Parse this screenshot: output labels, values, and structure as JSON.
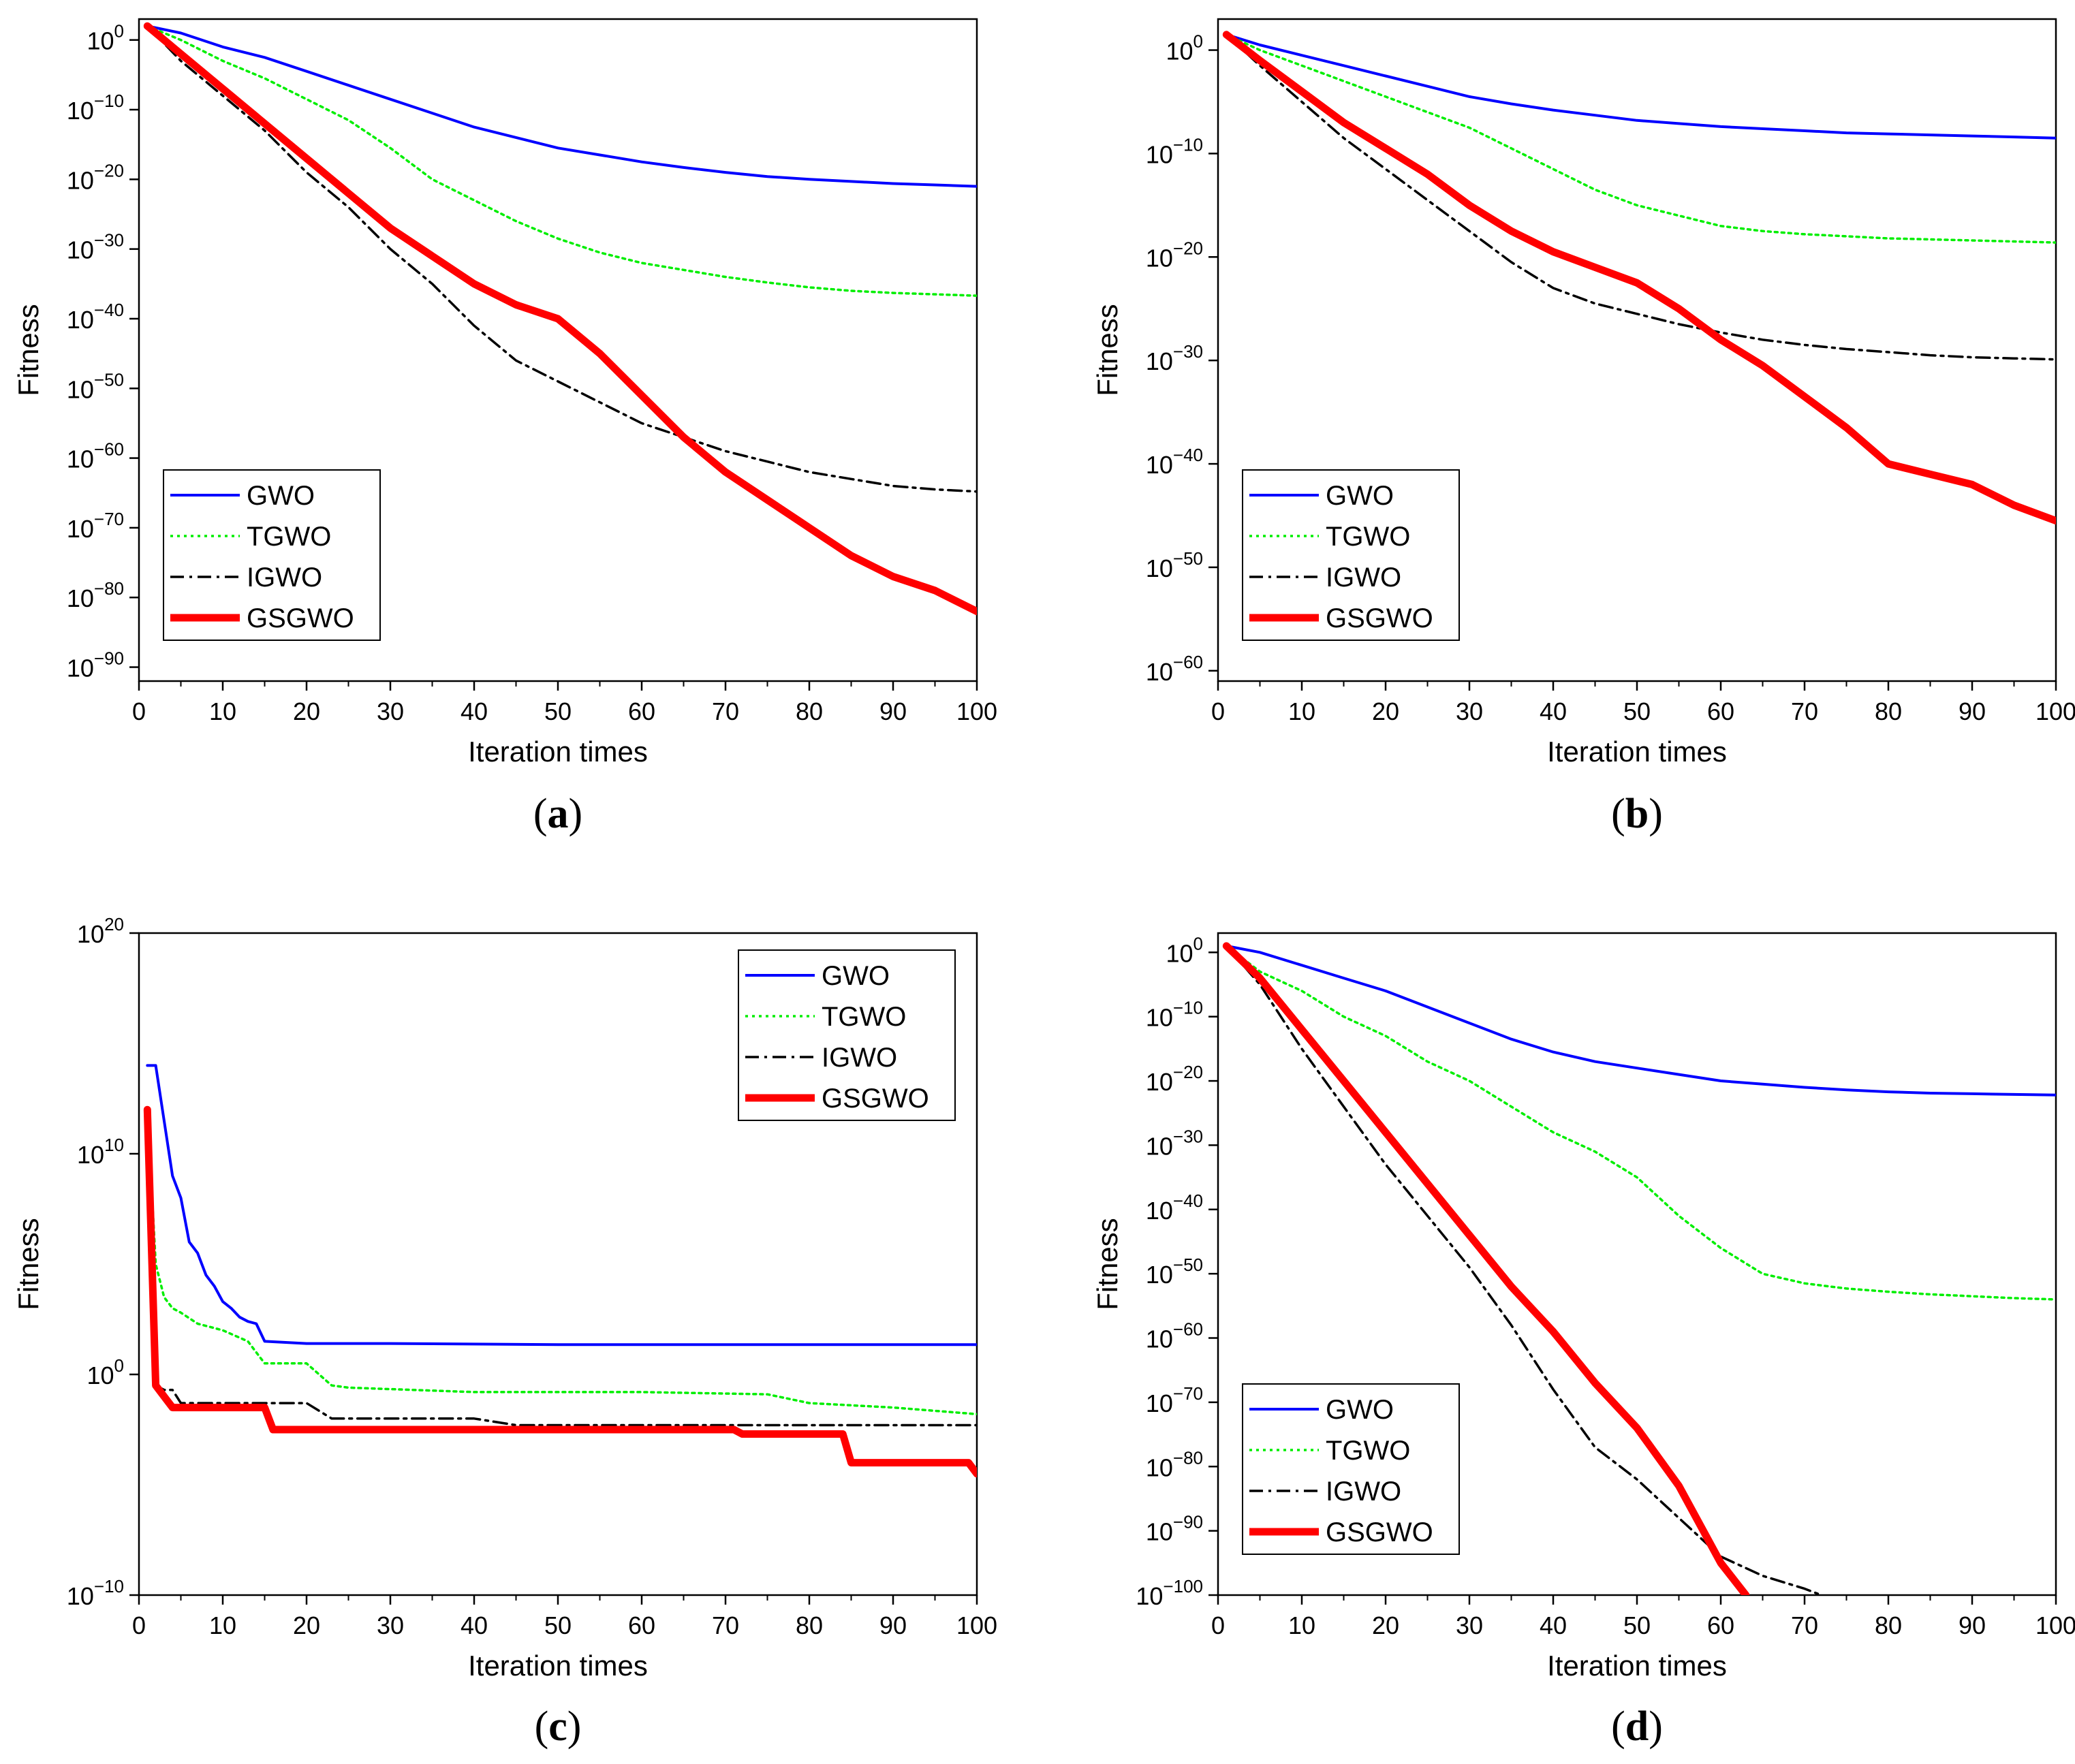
{
  "series_names": [
    "GWO",
    "TGWO",
    "IGWO",
    "GSGWO"
  ],
  "series_colors": {
    "GWO": "#0000ff",
    "TGWO": "#00ee00",
    "IGWO": "#000000",
    "GSGWO": "#ff0000"
  },
  "chart_data": [
    {
      "type": "line",
      "panel": "a",
      "caption": {
        "open": "(",
        "letter": "a",
        "close": ")"
      },
      "xlabel": "Iteration times",
      "ylabel": "Fitness",
      "yscale": "log",
      "xlim": [
        0,
        100
      ],
      "ylim_exp": [
        -92,
        3
      ],
      "xticks": [
        0,
        10,
        20,
        30,
        40,
        50,
        60,
        70,
        80,
        90,
        100
      ],
      "ytick_labels": [
        {
          "base": "10",
          "exp": "0",
          "v": 0
        },
        {
          "base": "10",
          "exp": "−10",
          "v": -10
        },
        {
          "base": "10",
          "exp": "−20",
          "v": -20
        },
        {
          "base": "10",
          "exp": "−30",
          "v": -30
        },
        {
          "base": "10",
          "exp": "−40",
          "v": -40
        },
        {
          "base": "10",
          "exp": "−50",
          "v": -50
        },
        {
          "base": "10",
          "exp": "−60",
          "v": -60
        },
        {
          "base": "10",
          "exp": "−70",
          "v": -70
        },
        {
          "base": "10",
          "exp": "−80",
          "v": -80
        },
        {
          "base": "10",
          "exp": "−90",
          "v": -90
        }
      ],
      "legend_position": "bottom-left",
      "series": [
        {
          "name": "GWO",
          "x": [
            1,
            5,
            10,
            15,
            20,
            25,
            30,
            35,
            40,
            45,
            50,
            55,
            60,
            65,
            70,
            75,
            80,
            85,
            90,
            95,
            100
          ],
          "log10_y": [
            2,
            1,
            -1,
            -2.5,
            -4.5,
            -6.5,
            -8.5,
            -10.5,
            -12.5,
            -14,
            -15.5,
            -16.5,
            -17.5,
            -18.3,
            -19,
            -19.6,
            -20,
            -20.3,
            -20.6,
            -20.8,
            -21
          ]
        },
        {
          "name": "TGWO",
          "x": [
            1,
            5,
            10,
            15,
            20,
            25,
            30,
            35,
            40,
            45,
            50,
            55,
            60,
            65,
            70,
            75,
            80,
            85,
            90,
            95,
            100
          ],
          "log10_y": [
            2,
            0,
            -3,
            -5.5,
            -8.5,
            -11.5,
            -15.5,
            -20,
            -23,
            -26,
            -28.5,
            -30.5,
            -32,
            -33,
            -34,
            -34.8,
            -35.5,
            -36,
            -36.3,
            -36.5,
            -36.7
          ]
        },
        {
          "name": "IGWO",
          "x": [
            1,
            5,
            10,
            15,
            20,
            25,
            30,
            35,
            40,
            45,
            50,
            55,
            60,
            65,
            70,
            75,
            80,
            85,
            90,
            95,
            100
          ],
          "log10_y": [
            2,
            -3,
            -8,
            -13,
            -19,
            -24,
            -30,
            -35,
            -41,
            -46,
            -49,
            -52,
            -55,
            -57,
            -59,
            -60.5,
            -62,
            -63,
            -64,
            -64.5,
            -64.8
          ]
        },
        {
          "name": "GSGWO",
          "x": [
            1,
            5,
            10,
            15,
            20,
            25,
            30,
            35,
            40,
            45,
            50,
            55,
            60,
            65,
            70,
            75,
            80,
            85,
            90,
            95,
            100
          ],
          "log10_y": [
            2,
            -2,
            -7,
            -12,
            -17,
            -22,
            -27,
            -31,
            -35,
            -38,
            -40,
            -45,
            -51,
            -57,
            -62,
            -66,
            -70,
            -74,
            -77,
            -79,
            -82
          ]
        }
      ]
    },
    {
      "type": "line",
      "panel": "b",
      "caption": {
        "open": "(",
        "letter": "b",
        "close": ")"
      },
      "xlabel": "Iteration times",
      "ylabel": "Fitness",
      "yscale": "log",
      "xlim": [
        0,
        100
      ],
      "ylim_exp": [
        -61,
        3
      ],
      "xticks": [
        0,
        10,
        20,
        30,
        40,
        50,
        60,
        70,
        80,
        90,
        100
      ],
      "ytick_labels": [
        {
          "base": "10",
          "exp": "0",
          "v": 0
        },
        {
          "base": "10",
          "exp": "−10",
          "v": -10
        },
        {
          "base": "10",
          "exp": "−20",
          "v": -20
        },
        {
          "base": "10",
          "exp": "−30",
          "v": -30
        },
        {
          "base": "10",
          "exp": "−40",
          "v": -40
        },
        {
          "base": "10",
          "exp": "−50",
          "v": -50
        },
        {
          "base": "10",
          "exp": "−60",
          "v": -60
        }
      ],
      "legend_position": "bottom-left",
      "series": [
        {
          "name": "GWO",
          "x": [
            1,
            5,
            10,
            15,
            20,
            25,
            30,
            35,
            40,
            45,
            50,
            55,
            60,
            65,
            70,
            75,
            80,
            85,
            90,
            95,
            100
          ],
          "log10_y": [
            1.5,
            0.5,
            -0.5,
            -1.5,
            -2.5,
            -3.5,
            -4.5,
            -5.2,
            -5.8,
            -6.3,
            -6.8,
            -7.1,
            -7.4,
            -7.6,
            -7.8,
            -8,
            -8.1,
            -8.2,
            -8.3,
            -8.4,
            -8.5
          ]
        },
        {
          "name": "TGWO",
          "x": [
            1,
            5,
            10,
            15,
            20,
            25,
            30,
            35,
            40,
            45,
            50,
            55,
            60,
            65,
            70,
            75,
            80,
            85,
            90,
            95,
            100
          ],
          "log10_y": [
            1.5,
            0,
            -1.5,
            -3,
            -4.5,
            -6,
            -7.5,
            -9.5,
            -11.5,
            -13.5,
            -15,
            -16,
            -17,
            -17.5,
            -17.8,
            -18,
            -18.2,
            -18.3,
            -18.4,
            -18.5,
            -18.6
          ]
        },
        {
          "name": "IGWO",
          "x": [
            1,
            5,
            10,
            15,
            20,
            25,
            30,
            35,
            40,
            45,
            50,
            55,
            60,
            65,
            70,
            75,
            80,
            85,
            90,
            95,
            100
          ],
          "log10_y": [
            1.5,
            -1.5,
            -5,
            -8.5,
            -11.5,
            -14.5,
            -17.5,
            -20.5,
            -23,
            -24.5,
            -25.5,
            -26.5,
            -27.3,
            -28,
            -28.5,
            -28.9,
            -29.2,
            -29.5,
            -29.7,
            -29.8,
            -29.9
          ]
        },
        {
          "name": "GSGWO",
          "x": [
            1,
            5,
            10,
            15,
            20,
            25,
            30,
            35,
            40,
            45,
            50,
            55,
            60,
            65,
            70,
            75,
            80,
            85,
            90,
            95,
            100
          ],
          "log10_y": [
            1.5,
            -1,
            -4,
            -7,
            -9.5,
            -12,
            -15,
            -17.5,
            -19.5,
            -21,
            -22.5,
            -25,
            -28,
            -30.5,
            -33.5,
            -36.5,
            -40,
            -41,
            -42,
            -44,
            -45.5
          ]
        }
      ]
    },
    {
      "type": "line",
      "panel": "c",
      "caption": {
        "open": "(",
        "letter": "c",
        "close": ")"
      },
      "xlabel": "Iteration times",
      "ylabel": "Fitness",
      "yscale": "log",
      "xlim": [
        0,
        100
      ],
      "ylim_exp": [
        -10,
        20
      ],
      "xticks": [
        0,
        10,
        20,
        30,
        40,
        50,
        60,
        70,
        80,
        90,
        100
      ],
      "ytick_labels": [
        {
          "base": "10",
          "exp": "20",
          "v": 20
        },
        {
          "base": "10",
          "exp": "10",
          "v": 10
        },
        {
          "base": "10",
          "exp": "0",
          "v": 0
        },
        {
          "base": "10",
          "exp": "−10",
          "v": -10
        }
      ],
      "legend_position": "top-right",
      "series": [
        {
          "name": "GWO",
          "x": [
            1,
            2,
            3,
            4,
            5,
            6,
            7,
            8,
            9,
            10,
            11,
            12,
            13,
            14,
            15,
            20,
            30,
            50,
            70,
            90,
            100
          ],
          "log10_y": [
            14,
            14,
            11.5,
            9,
            8,
            6,
            5.5,
            4.5,
            4,
            3.3,
            3,
            2.6,
            2.4,
            2.3,
            1.5,
            1.4,
            1.4,
            1.35,
            1.35,
            1.35,
            1.35
          ]
        },
        {
          "name": "TGWO",
          "x": [
            1,
            2,
            3,
            4,
            5,
            7,
            10,
            13,
            15,
            20,
            23,
            25,
            40,
            60,
            75,
            80,
            90,
            100
          ],
          "log10_y": [
            12,
            5,
            3.5,
            3,
            2.8,
            2.3,
            2,
            1.5,
            0.5,
            0.5,
            -0.5,
            -0.6,
            -0.8,
            -0.8,
            -0.9,
            -1.3,
            -1.5,
            -1.8
          ]
        },
        {
          "name": "IGWO",
          "x": [
            1,
            2,
            3,
            4,
            5,
            6,
            7,
            10,
            20,
            23,
            25,
            40,
            45,
            60,
            80,
            100
          ],
          "log10_y": [
            12,
            -0.5,
            -0.7,
            -0.7,
            -1.3,
            -1.3,
            -1.3,
            -1.3,
            -1.3,
            -2,
            -2,
            -2,
            -2.3,
            -2.3,
            -2.3,
            -2.3
          ]
        },
        {
          "name": "GSGWO",
          "x": [
            1,
            2,
            3,
            4,
            5,
            10,
            14,
            15,
            16,
            30,
            50,
            71,
            72,
            84,
            85,
            99,
            100
          ],
          "log10_y": [
            12,
            -0.5,
            -1,
            -1.5,
            -1.5,
            -1.5,
            -1.5,
            -1.5,
            -2.5,
            -2.5,
            -2.5,
            -2.5,
            -2.7,
            -2.7,
            -4,
            -4,
            -4.5
          ]
        }
      ]
    },
    {
      "type": "line",
      "panel": "d",
      "caption": {
        "open": "(",
        "letter": "d",
        "close": ")"
      },
      "xlabel": "Iteration times",
      "ylabel": "Fitness",
      "yscale": "log",
      "xlim": [
        0,
        100
      ],
      "ylim_exp": [
        -100,
        3
      ],
      "xticks": [
        0,
        10,
        20,
        30,
        40,
        50,
        60,
        70,
        80,
        90,
        100
      ],
      "ytick_labels": [
        {
          "base": "10",
          "exp": "0",
          "v": 0
        },
        {
          "base": "10",
          "exp": "−10",
          "v": -10
        },
        {
          "base": "10",
          "exp": "−20",
          "v": -20
        },
        {
          "base": "10",
          "exp": "−30",
          "v": -30
        },
        {
          "base": "10",
          "exp": "−40",
          "v": -40
        },
        {
          "base": "10",
          "exp": "−50",
          "v": -50
        },
        {
          "base": "10",
          "exp": "−60",
          "v": -60
        },
        {
          "base": "10",
          "exp": "−70",
          "v": -70
        },
        {
          "base": "10",
          "exp": "−80",
          "v": -80
        },
        {
          "base": "10",
          "exp": "−90",
          "v": -90
        },
        {
          "base": "10",
          "exp": "−100",
          "v": -100
        }
      ],
      "legend_position": "bottom-left",
      "series": [
        {
          "name": "GWO",
          "x": [
            1,
            5,
            10,
            15,
            20,
            25,
            30,
            35,
            40,
            45,
            50,
            55,
            60,
            65,
            70,
            75,
            80,
            85,
            90,
            95,
            100
          ],
          "log10_y": [
            1,
            0,
            -2,
            -4,
            -6,
            -8.5,
            -11,
            -13.5,
            -15.5,
            -17,
            -18,
            -19,
            -20,
            -20.5,
            -21,
            -21.4,
            -21.7,
            -21.9,
            -22,
            -22.1,
            -22.2
          ]
        },
        {
          "name": "TGWO",
          "x": [
            1,
            5,
            10,
            15,
            20,
            25,
            30,
            35,
            40,
            45,
            50,
            55,
            60,
            65,
            70,
            75,
            80,
            85,
            90,
            95,
            100
          ],
          "log10_y": [
            1,
            -3,
            -6,
            -10,
            -13,
            -17,
            -20,
            -24,
            -28,
            -31,
            -35,
            -41,
            -46,
            -50,
            -51.5,
            -52.3,
            -52.8,
            -53.2,
            -53.5,
            -53.8,
            -54
          ]
        },
        {
          "name": "IGWO",
          "x": [
            1,
            5,
            10,
            15,
            20,
            25,
            30,
            35,
            40,
            45,
            50,
            55,
            60,
            65,
            70,
            72
          ],
          "log10_y": [
            1,
            -5,
            -15,
            -24,
            -33,
            -41,
            -49,
            -58,
            -68,
            -77,
            -82,
            -88,
            -94,
            -97,
            -99,
            -100
          ]
        },
        {
          "name": "GSGWO",
          "x": [
            1,
            5,
            10,
            15,
            20,
            25,
            30,
            35,
            40,
            45,
            50,
            55,
            60,
            63
          ],
          "log10_y": [
            1,
            -4,
            -12,
            -20,
            -28,
            -36,
            -44,
            -52,
            -59,
            -67,
            -74,
            -83,
            -95,
            -100
          ]
        }
      ]
    }
  ]
}
